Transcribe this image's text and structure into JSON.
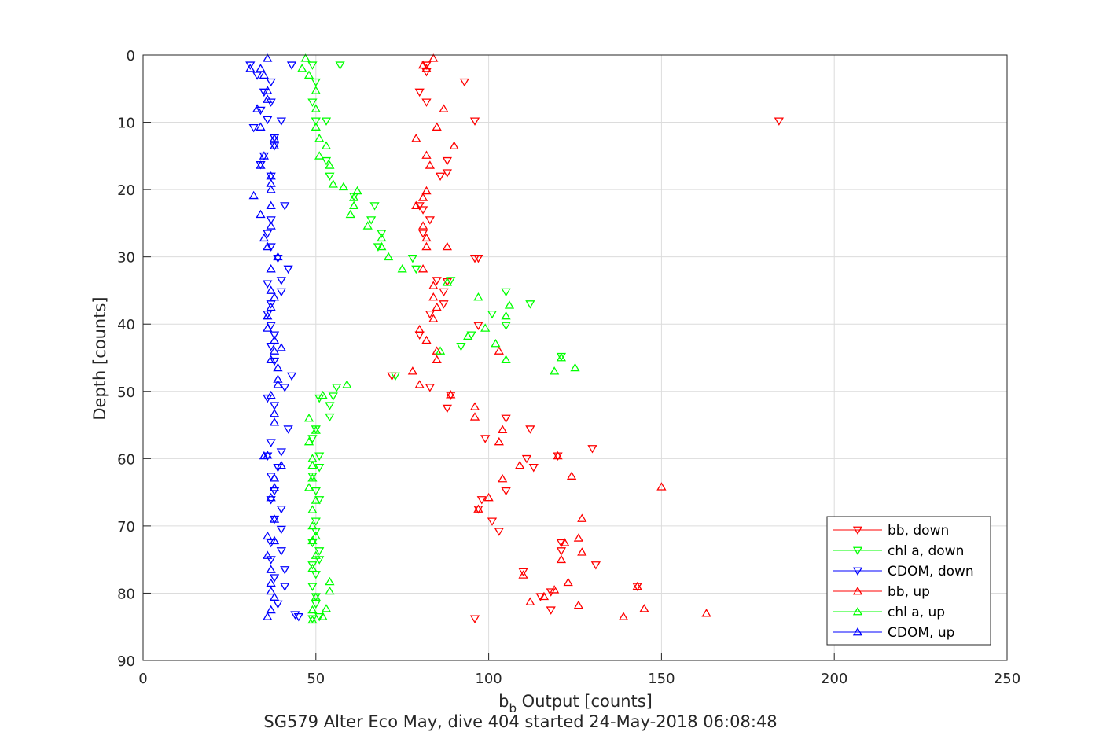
{
  "chart_data": {
    "type": "scatter",
    "title": "SG579 Alter Eco May, dive 404 started 24-May-2018 06:08:48",
    "xlabel_main": "b",
    "xlabel_sub": "b",
    "xlabel_rest": " Output [counts]",
    "ylabel": "Depth [counts]",
    "xlim": [
      0,
      250
    ],
    "ylim": [
      0,
      90
    ],
    "y_reversed": true,
    "x_ticks": [
      "0",
      "50",
      "100",
      "150",
      "200",
      "250"
    ],
    "y_ticks": [
      "0",
      "10",
      "20",
      "30",
      "40",
      "50",
      "60",
      "70",
      "80",
      "90"
    ],
    "grid": true,
    "legend_position": "bottom-right",
    "series": [
      {
        "name": "bb, down",
        "color": "#FF0000",
        "marker": "triangle-down",
        "points": [
          [
            82,
            1.5
          ],
          [
            82,
            2.5
          ],
          [
            93,
            4
          ],
          [
            80,
            5.5
          ],
          [
            82,
            7
          ],
          [
            96,
            9.8
          ],
          [
            184,
            9.8
          ],
          [
            88,
            15.7
          ],
          [
            86,
            18
          ],
          [
            88,
            17.5
          ],
          [
            80,
            22.4
          ],
          [
            81,
            23
          ],
          [
            83,
            24.5
          ],
          [
            81,
            26.5
          ],
          [
            96,
            30.2
          ],
          [
            97,
            30.2
          ],
          [
            85,
            33.5
          ],
          [
            88,
            33.7
          ],
          [
            87,
            35.2
          ],
          [
            87,
            37
          ],
          [
            83,
            38.5
          ],
          [
            97,
            40.2
          ],
          [
            80,
            41.6
          ],
          [
            72,
            47.7
          ],
          [
            83,
            49.4
          ],
          [
            89,
            50.6
          ],
          [
            88,
            52.5
          ],
          [
            105,
            54
          ],
          [
            112,
            55.6
          ],
          [
            99,
            57
          ],
          [
            130,
            58.5
          ],
          [
            111,
            60
          ],
          [
            113,
            61.3
          ],
          [
            120,
            59.6
          ],
          [
            105,
            64.8
          ],
          [
            97,
            67.5
          ],
          [
            98,
            66.1
          ],
          [
            101,
            69.3
          ],
          [
            103,
            70.8
          ],
          [
            121,
            72.5
          ],
          [
            121,
            73.7
          ],
          [
            131,
            75.8
          ],
          [
            110,
            76.8
          ],
          [
            143,
            79
          ],
          [
            118,
            79.8
          ],
          [
            115,
            80.5
          ],
          [
            118,
            82.5
          ],
          [
            96,
            83.8
          ]
        ]
      },
      {
        "name": "chl a, down",
        "color": "#00FF00",
        "marker": "triangle-down",
        "points": [
          [
            49,
            1.5
          ],
          [
            57,
            1.5
          ],
          [
            50,
            4
          ],
          [
            49,
            7
          ],
          [
            53,
            9.8
          ],
          [
            50,
            9.8
          ],
          [
            53,
            15.7
          ],
          [
            54,
            18
          ],
          [
            61,
            21
          ],
          [
            67,
            22.4
          ],
          [
            66,
            24.5
          ],
          [
            69,
            26.5
          ],
          [
            68,
            28.5
          ],
          [
            78,
            30.2
          ],
          [
            79,
            31.8
          ],
          [
            89,
            33.5
          ],
          [
            105,
            35.2
          ],
          [
            112,
            37
          ],
          [
            101,
            38.5
          ],
          [
            105,
            40.2
          ],
          [
            95,
            41.6
          ],
          [
            92,
            43.3
          ],
          [
            121,
            44.8
          ],
          [
            73,
            47.7
          ],
          [
            56,
            49.4
          ],
          [
            51,
            51
          ],
          [
            55,
            50.7
          ],
          [
            54,
            52.1
          ],
          [
            54,
            53.8
          ],
          [
            50,
            55.6
          ],
          [
            49,
            57
          ],
          [
            51,
            59.6
          ],
          [
            51,
            61.3
          ],
          [
            49,
            62.6
          ],
          [
            50,
            64.8
          ],
          [
            51,
            66.1
          ],
          [
            50,
            69.3
          ],
          [
            50,
            70.8
          ],
          [
            49,
            72.5
          ],
          [
            51,
            73.7
          ],
          [
            51,
            75
          ],
          [
            49,
            75.8
          ],
          [
            50,
            77.2
          ],
          [
            49,
            79
          ],
          [
            50,
            80.5
          ],
          [
            50,
            81.6
          ],
          [
            51,
            83.5
          ],
          [
            49,
            83.8
          ]
        ]
      },
      {
        "name": "CDOM, down",
        "color": "#0000FF",
        "marker": "triangle-down",
        "points": [
          [
            31,
            1.5
          ],
          [
            43,
            1.5
          ],
          [
            33,
            3
          ],
          [
            37,
            4
          ],
          [
            35,
            5.5
          ],
          [
            37,
            7
          ],
          [
            34,
            8.2
          ],
          [
            36,
            9.6
          ],
          [
            40,
            9.8
          ],
          [
            32,
            10.8
          ],
          [
            38,
            12.3
          ],
          [
            38,
            13.5
          ],
          [
            35,
            15
          ],
          [
            34,
            16.3
          ],
          [
            37,
            18
          ],
          [
            41,
            22.4
          ],
          [
            37,
            24.5
          ],
          [
            36,
            26.5
          ],
          [
            37,
            28.5
          ],
          [
            39,
            30.2
          ],
          [
            42,
            31.8
          ],
          [
            40,
            33.5
          ],
          [
            36,
            34
          ],
          [
            40,
            35.2
          ],
          [
            37,
            37
          ],
          [
            36,
            38.5
          ],
          [
            37,
            40.2
          ],
          [
            38,
            41.6
          ],
          [
            37,
            43.3
          ],
          [
            38,
            45.5
          ],
          [
            43,
            47.7
          ],
          [
            41,
            49.4
          ],
          [
            36,
            51
          ],
          [
            38,
            52.1
          ],
          [
            42,
            55.6
          ],
          [
            37,
            57.6
          ],
          [
            40,
            59
          ],
          [
            36,
            59.6
          ],
          [
            39,
            61.3
          ],
          [
            37,
            62.6
          ],
          [
            38,
            64.8
          ],
          [
            37,
            66.1
          ],
          [
            40,
            67.5
          ],
          [
            38,
            69
          ],
          [
            40,
            70.5
          ],
          [
            37,
            72.5
          ],
          [
            40,
            73.7
          ],
          [
            37,
            75
          ],
          [
            41,
            76.5
          ],
          [
            38,
            77.7
          ],
          [
            41,
            79
          ],
          [
            39,
            81.6
          ],
          [
            44,
            83.2
          ],
          [
            45,
            83.5
          ]
        ]
      },
      {
        "name": "bb, up",
        "color": "#FF0000",
        "marker": "triangle-up",
        "points": [
          [
            84,
            0.5
          ],
          [
            81,
            1.5
          ],
          [
            82,
            2
          ],
          [
            87,
            8
          ],
          [
            85,
            10.7
          ],
          [
            79,
            12.4
          ],
          [
            90,
            13.5
          ],
          [
            82,
            14.9
          ],
          [
            83,
            16.4
          ],
          [
            82,
            20.2
          ],
          [
            81,
            21.2
          ],
          [
            79,
            22.4
          ],
          [
            81,
            25.4
          ],
          [
            82,
            27.2
          ],
          [
            82,
            28.5
          ],
          [
            88,
            28.5
          ],
          [
            81,
            31.8
          ],
          [
            84,
            34.3
          ],
          [
            84,
            36
          ],
          [
            85,
            37.5
          ],
          [
            84,
            39.2
          ],
          [
            80,
            40.8
          ],
          [
            82,
            42.4
          ],
          [
            85,
            44
          ],
          [
            103,
            44
          ],
          [
            85,
            45.3
          ],
          [
            78,
            47
          ],
          [
            80,
            49
          ],
          [
            89,
            50.5
          ],
          [
            96,
            52.3
          ],
          [
            96,
            53.8
          ],
          [
            104,
            55.7
          ],
          [
            103,
            57.5
          ],
          [
            120,
            59.6
          ],
          [
            109,
            61
          ],
          [
            104,
            63
          ],
          [
            124,
            62.6
          ],
          [
            150,
            64.2
          ],
          [
            100,
            65.8
          ],
          [
            97,
            67.5
          ],
          [
            127,
            68.9
          ],
          [
            126,
            71.8
          ],
          [
            127,
            73.9
          ],
          [
            122,
            72.5
          ],
          [
            121,
            75
          ],
          [
            110,
            77.3
          ],
          [
            123,
            78.4
          ],
          [
            143,
            79
          ],
          [
            119,
            79.5
          ],
          [
            116,
            80.5
          ],
          [
            112,
            81.3
          ],
          [
            126,
            81.8
          ],
          [
            145,
            82.3
          ],
          [
            163,
            83
          ],
          [
            139,
            83.5
          ]
        ]
      },
      {
        "name": "chl a, up",
        "color": "#00FF00",
        "marker": "triangle-up",
        "points": [
          [
            47,
            0.5
          ],
          [
            46,
            2
          ],
          [
            48,
            3
          ],
          [
            50,
            5.3
          ],
          [
            50,
            8
          ],
          [
            50,
            10.7
          ],
          [
            51,
            12.4
          ],
          [
            53,
            13.5
          ],
          [
            51,
            15
          ],
          [
            54,
            16.4
          ],
          [
            55,
            19.2
          ],
          [
            58,
            19.6
          ],
          [
            62,
            20.2
          ],
          [
            61,
            21.2
          ],
          [
            61,
            22.4
          ],
          [
            60,
            23.7
          ],
          [
            65,
            25.4
          ],
          [
            69,
            27.2
          ],
          [
            69,
            28.5
          ],
          [
            71,
            30
          ],
          [
            75,
            31.8
          ],
          [
            88,
            33.8
          ],
          [
            97,
            36
          ],
          [
            106,
            37.2
          ],
          [
            105,
            38.8
          ],
          [
            99,
            40.6
          ],
          [
            94,
            41.8
          ],
          [
            102,
            42.9
          ],
          [
            86,
            44
          ],
          [
            105,
            45.3
          ],
          [
            121,
            45
          ],
          [
            125,
            46.5
          ],
          [
            119,
            47
          ],
          [
            59,
            49
          ],
          [
            52,
            50.6
          ],
          [
            48,
            54
          ],
          [
            50,
            55.8
          ],
          [
            48,
            57.5
          ],
          [
            49,
            60
          ],
          [
            49,
            61
          ],
          [
            49,
            62.9
          ],
          [
            48,
            64.3
          ],
          [
            50,
            66.2
          ],
          [
            49,
            67.6
          ],
          [
            49,
            70
          ],
          [
            50,
            71.5
          ],
          [
            49,
            72.2
          ],
          [
            50,
            74.4
          ],
          [
            49,
            76.3
          ],
          [
            54,
            78.3
          ],
          [
            54,
            79.7
          ],
          [
            50,
            80.6
          ],
          [
            49,
            82.5
          ],
          [
            53,
            82.3
          ],
          [
            52,
            83.5
          ],
          [
            49,
            84
          ]
        ]
      },
      {
        "name": "CDOM, up",
        "color": "#0000FF",
        "marker": "triangle-up",
        "points": [
          [
            36,
            0.5
          ],
          [
            31,
            2
          ],
          [
            34,
            2
          ],
          [
            35,
            3
          ],
          [
            36,
            5.3
          ],
          [
            36,
            6.6
          ],
          [
            33,
            8
          ],
          [
            34,
            10.7
          ],
          [
            38,
            12.4
          ],
          [
            38,
            13.5
          ],
          [
            35,
            15
          ],
          [
            34,
            16.4
          ],
          [
            37,
            18
          ],
          [
            37,
            19.1
          ],
          [
            37,
            20
          ],
          [
            32,
            20.9
          ],
          [
            37,
            22.4
          ],
          [
            34,
            23.7
          ],
          [
            37,
            25.4
          ],
          [
            35,
            27.2
          ],
          [
            36,
            28.5
          ],
          [
            39,
            30
          ],
          [
            37,
            31.8
          ],
          [
            37,
            35
          ],
          [
            38,
            36
          ],
          [
            37,
            37.5
          ],
          [
            36,
            38.8
          ],
          [
            36,
            40.6
          ],
          [
            38,
            42.4
          ],
          [
            40,
            43.5
          ],
          [
            38,
            44
          ],
          [
            37,
            45.3
          ],
          [
            39,
            46.5
          ],
          [
            39,
            48.2
          ],
          [
            39,
            49
          ],
          [
            37,
            50.6
          ],
          [
            38,
            53.3
          ],
          [
            38,
            54.6
          ],
          [
            35,
            59.6
          ],
          [
            36,
            59.5
          ],
          [
            40,
            61
          ],
          [
            38,
            62.9
          ],
          [
            38,
            64.3
          ],
          [
            37,
            65.8
          ],
          [
            38,
            69
          ],
          [
            36,
            71.5
          ],
          [
            38,
            72.2
          ],
          [
            36,
            74.4
          ],
          [
            37,
            76.5
          ],
          [
            37,
            78.5
          ],
          [
            37,
            79.7
          ],
          [
            38,
            80.6
          ],
          [
            37,
            82.5
          ],
          [
            36,
            83.5
          ]
        ]
      }
    ]
  }
}
